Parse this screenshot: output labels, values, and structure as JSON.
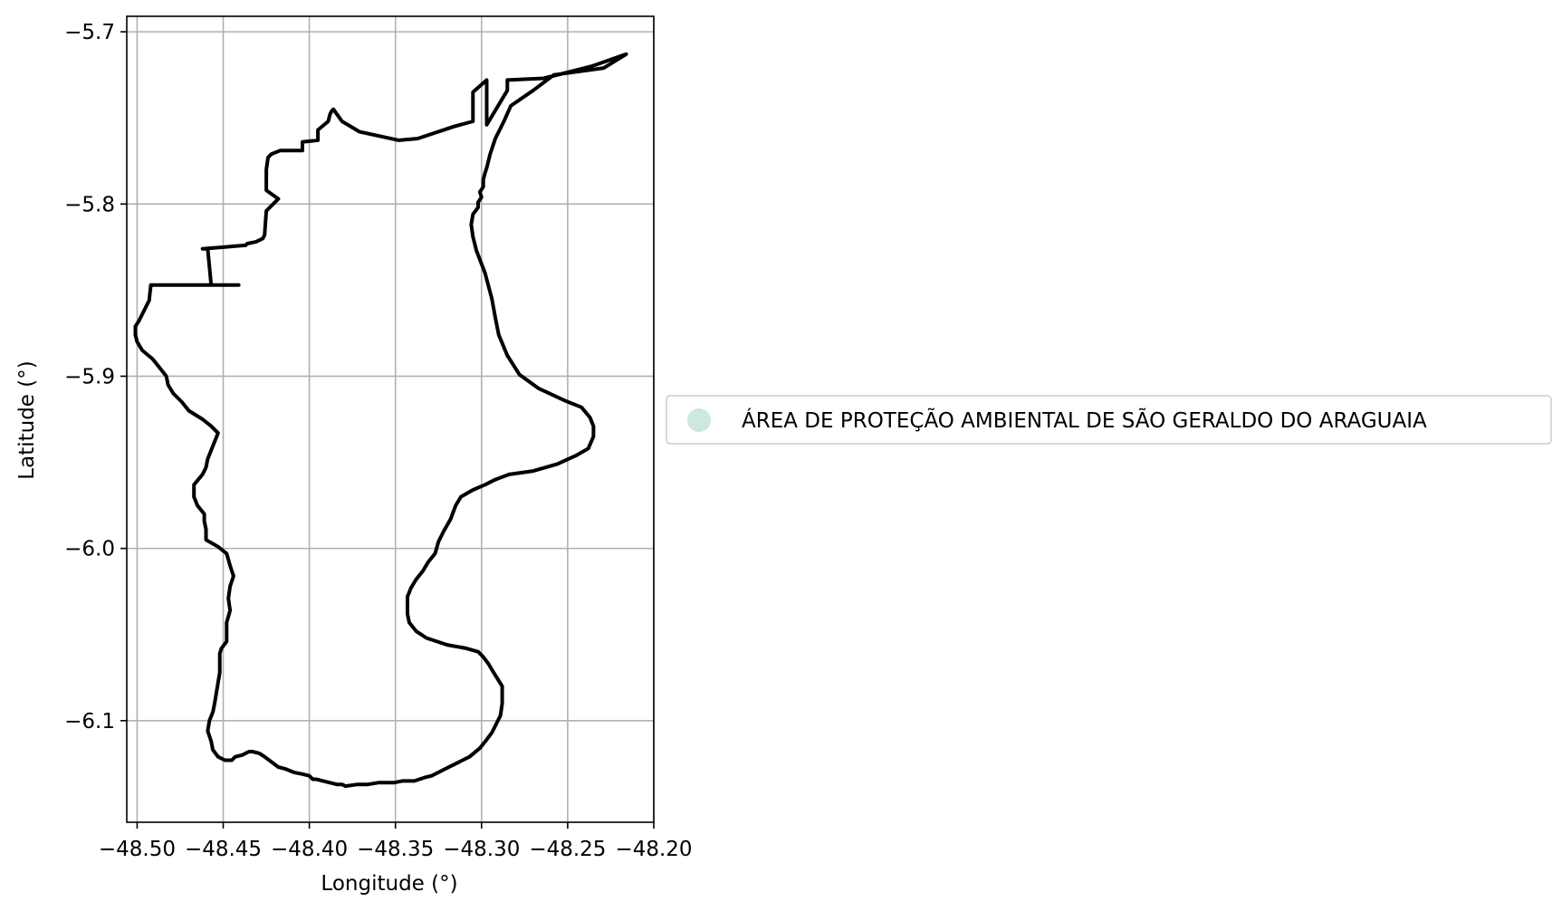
{
  "chart_data": {
    "type": "map",
    "xlabel": "Longitude (°)",
    "ylabel": "Latitude (°)",
    "xlim": [
      -48.506,
      -48.2
    ],
    "ylim": [
      -6.159,
      -5.691
    ],
    "x_ticks": [
      -48.5,
      -48.45,
      -48.4,
      -48.35,
      -48.3,
      -48.25,
      -48.2
    ],
    "x_tick_labels": [
      "−48.50",
      "−48.45",
      "−48.40",
      "−48.35",
      "−48.30",
      "−48.25",
      "−48.20"
    ],
    "y_ticks": [
      -5.7,
      -5.8,
      -5.9,
      -6.0,
      -6.1
    ],
    "y_tick_labels": [
      "−5.7",
      "−5.8",
      "−5.9",
      "−6.0",
      "−6.1"
    ],
    "grid": true,
    "legend": {
      "placement": "right",
      "entries": [
        {
          "label": "ÁREA DE PROTEÇÃO AMBIENTAL DE SÃO GERALDO DO ARAGUAIA",
          "marker": "circle",
          "color": "#cde8dc"
        }
      ]
    },
    "boundary_color": "#000000",
    "series": [
      {
        "name": "ÁREA DE PROTEÇÃO AMBIENTAL DE SÃO GERALDO DO ARAGUAIA",
        "lon": [
          -48.297,
          -48.285,
          -48.285,
          -48.264,
          -48.236,
          -48.216,
          -48.229,
          -48.258,
          -48.27,
          -48.283,
          -48.287,
          -48.292,
          -48.295,
          -48.297,
          -48.298,
          -48.299,
          -48.299,
          -48.301,
          -48.3,
          -48.302,
          -48.302,
          -48.305,
          -48.306,
          -48.305,
          -48.303,
          -48.298,
          -48.294,
          -48.292,
          -48.29,
          -48.285,
          -48.278,
          -48.267,
          -48.252,
          -48.242,
          -48.237,
          -48.235,
          -48.235,
          -48.238,
          -48.245,
          -48.256,
          -48.27,
          -48.284,
          -48.292,
          -48.298,
          -48.305,
          -48.312,
          -48.315,
          -48.318,
          -48.322,
          -48.325,
          -48.327,
          -48.331,
          -48.334,
          -48.338,
          -48.341,
          -48.343,
          -48.343,
          -48.343,
          -48.342,
          -48.338,
          -48.332,
          -48.32,
          -48.309,
          -48.302,
          -48.299,
          -48.296,
          -48.293,
          -48.288,
          -48.288,
          -48.289,
          -48.292,
          -48.294,
          -48.297,
          -48.301,
          -48.307,
          -48.313,
          -48.319,
          -48.325,
          -48.329,
          -48.333,
          -48.339,
          -48.346,
          -48.351,
          -48.356,
          -48.36,
          -48.366,
          -48.372,
          -48.379,
          -48.381,
          -48.384,
          -48.388,
          -48.392,
          -48.396,
          -48.398,
          -48.4,
          -48.404,
          -48.409,
          -48.414,
          -48.418,
          -48.422,
          -48.426,
          -48.429,
          -48.433,
          -48.435,
          -48.439,
          -48.443,
          -48.445,
          -48.449,
          -48.453,
          -48.456,
          -48.457,
          -48.459,
          -48.458,
          -48.456,
          -48.455,
          -48.454,
          -48.453,
          -48.452,
          -48.452,
          -48.452,
          -48.451,
          -48.448,
          -48.448,
          -48.448,
          -48.446,
          -48.447,
          -48.446,
          -48.444,
          -48.446,
          -48.448,
          -48.453,
          -48.46,
          -48.46,
          -48.461,
          -48.461,
          -48.465,
          -48.467,
          -48.467,
          -48.462,
          -48.46,
          -48.459,
          -48.457,
          -48.455,
          -48.453,
          -48.457,
          -48.462,
          -48.47,
          -48.474,
          -48.479,
          -48.482,
          -48.483,
          -48.487,
          -48.491,
          -48.497,
          -48.5,
          -48.501,
          -48.501,
          -48.499,
          -48.497,
          -48.495,
          -48.493,
          -48.492,
          -48.441,
          -48.457,
          -48.459,
          -48.462,
          -48.437,
          -48.436,
          -48.431,
          -48.429,
          -48.427,
          -48.426,
          -48.425,
          -48.423,
          -48.418,
          -48.425,
          -48.425,
          -48.425,
          -48.424,
          -48.422,
          -48.417,
          -48.416,
          -48.404,
          -48.404,
          -48.395,
          -48.395,
          -48.389,
          -48.388,
          -48.387,
          -48.386,
          -48.381,
          -48.371,
          -48.348,
          -48.337,
          -48.316,
          -48.305,
          -48.305,
          -48.297
        ],
        "lat": [
          -5.754,
          -5.734,
          -5.728,
          -5.727,
          -5.72,
          -5.713,
          -5.721,
          -5.725,
          -5.734,
          -5.743,
          -5.752,
          -5.762,
          -5.771,
          -5.779,
          -5.782,
          -5.786,
          -5.79,
          -5.793,
          -5.796,
          -5.799,
          -5.802,
          -5.806,
          -5.812,
          -5.819,
          -5.827,
          -5.84,
          -5.855,
          -5.866,
          -5.876,
          -5.888,
          -5.899,
          -5.907,
          -5.914,
          -5.918,
          -5.924,
          -5.929,
          -5.935,
          -5.942,
          -5.946,
          -5.951,
          -5.955,
          -5.957,
          -5.96,
          -5.963,
          -5.966,
          -5.97,
          -5.975,
          -5.983,
          -5.99,
          -5.996,
          -6.003,
          -6.008,
          -6.013,
          -6.018,
          -6.023,
          -6.028,
          -6.033,
          -6.038,
          -6.043,
          -6.048,
          -6.052,
          -6.056,
          -6.058,
          -6.06,
          -6.063,
          -6.067,
          -6.072,
          -6.08,
          -6.09,
          -6.097,
          -6.103,
          -6.107,
          -6.111,
          -6.116,
          -6.121,
          -6.124,
          -6.127,
          -6.13,
          -6.132,
          -6.133,
          -6.135,
          -6.135,
          -6.136,
          -6.136,
          -6.136,
          -6.137,
          -6.137,
          -6.138,
          -6.137,
          -6.137,
          -6.136,
          -6.135,
          -6.134,
          -6.134,
          -6.132,
          -6.131,
          -6.13,
          -6.128,
          -6.127,
          -6.124,
          -6.121,
          -6.119,
          -6.118,
          -6.118,
          -6.12,
          -6.121,
          -6.123,
          -6.123,
          -6.121,
          -6.117,
          -6.112,
          -6.106,
          -6.1,
          -6.095,
          -6.09,
          -6.084,
          -6.078,
          -6.072,
          -6.066,
          -6.061,
          -6.058,
          -6.054,
          -6.049,
          -6.043,
          -6.036,
          -6.029,
          -6.022,
          -6.016,
          -6.01,
          -6.003,
          -5.999,
          -5.995,
          -5.989,
          -5.984,
          -5.98,
          -5.975,
          -5.97,
          -5.963,
          -5.957,
          -5.953,
          -5.948,
          -5.943,
          -5.938,
          -5.933,
          -5.929,
          -5.925,
          -5.92,
          -5.915,
          -5.91,
          -5.905,
          -5.9,
          -5.895,
          -5.89,
          -5.885,
          -5.88,
          -5.876,
          -5.871,
          -5.868,
          -5.864,
          -5.86,
          -5.856,
          -5.847,
          -5.847,
          -5.847,
          -5.826,
          -5.826,
          -5.824,
          -5.823,
          -5.822,
          -5.821,
          -5.82,
          -5.818,
          -5.804,
          -5.802,
          -5.797,
          -5.792,
          -5.786,
          -5.78,
          -5.773,
          -5.771,
          -5.769,
          -5.769,
          -5.769,
          -5.764,
          -5.763,
          -5.757,
          -5.752,
          -5.748,
          -5.746,
          -5.745,
          -5.752,
          -5.758,
          -5.763,
          -5.762,
          -5.755,
          -5.752,
          -5.735,
          -5.728
        ]
      }
    ]
  }
}
